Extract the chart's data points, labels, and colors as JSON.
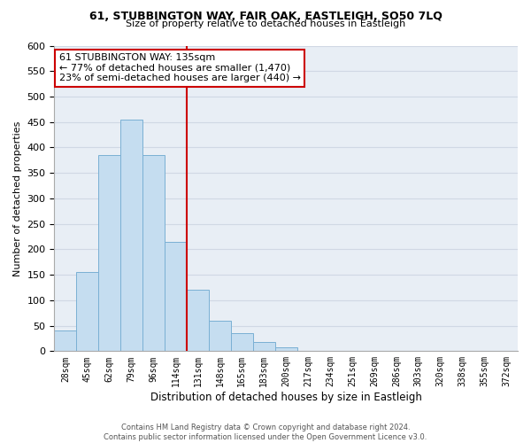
{
  "title1": "61, STUBBINGTON WAY, FAIR OAK, EASTLEIGH, SO50 7LQ",
  "title2": "Size of property relative to detached houses in Eastleigh",
  "xlabel": "Distribution of detached houses by size in Eastleigh",
  "ylabel": "Number of detached properties",
  "bar_labels": [
    "28sqm",
    "45sqm",
    "62sqm",
    "79sqm",
    "96sqm",
    "114sqm",
    "131sqm",
    "148sqm",
    "165sqm",
    "183sqm",
    "200sqm",
    "217sqm",
    "234sqm",
    "251sqm",
    "269sqm",
    "286sqm",
    "303sqm",
    "320sqm",
    "338sqm",
    "355sqm",
    "372sqm"
  ],
  "bar_values": [
    40,
    155,
    385,
    455,
    385,
    215,
    120,
    60,
    35,
    18,
    8,
    0,
    0,
    0,
    0,
    0,
    0,
    0,
    0,
    0,
    0
  ],
  "bar_color": "#c5ddf0",
  "bar_edge_color": "#7ab0d4",
  "vline_color": "#cc0000",
  "annotation_title": "61 STUBBINGTON WAY: 135sqm",
  "annotation_line1": "← 77% of detached houses are smaller (1,470)",
  "annotation_line2": "23% of semi-detached houses are larger (440) →",
  "annotation_box_color": "#cc0000",
  "ylim": [
    0,
    600
  ],
  "yticks": [
    0,
    50,
    100,
    150,
    200,
    250,
    300,
    350,
    400,
    450,
    500,
    550,
    600
  ],
  "footer1": "Contains HM Land Registry data © Crown copyright and database right 2024.",
  "footer2": "Contains public sector information licensed under the Open Government Licence v3.0.",
  "bg_color": "#e8eef5",
  "grid_color": "#d0d8e4"
}
